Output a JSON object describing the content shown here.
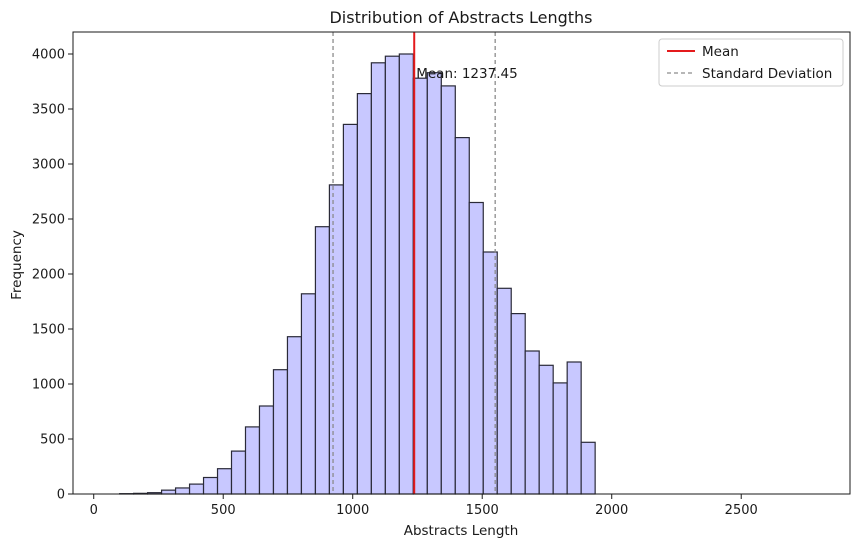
{
  "chart_data": {
    "type": "bar",
    "title": "Distribution of Abstracts Lengths",
    "xlabel": "Abstracts Length",
    "ylabel": "Frequency",
    "xlim": [
      -80,
      2920
    ],
    "ylim": [
      0,
      4200
    ],
    "xticks": [
      0,
      500,
      1000,
      1500,
      2000,
      2500
    ],
    "yticks": [
      0,
      500,
      1000,
      1500,
      2000,
      2500,
      3000,
      3500,
      4000
    ],
    "bin_edges": [
      100,
      154,
      208,
      262,
      316,
      370,
      424,
      478,
      532,
      586,
      640,
      694,
      748,
      802,
      856,
      910,
      964,
      1018,
      1072,
      1126,
      1180,
      1234,
      1288,
      1342,
      1396,
      1450,
      1504,
      1558,
      1612,
      1666,
      1720,
      1774,
      1828,
      1882,
      1936,
      1990,
      2044,
      2098,
      2152,
      2206,
      2260,
      2314,
      2368,
      2422,
      2476,
      2530,
      2584,
      2638,
      2692,
      2746,
      2800
    ],
    "counts": [
      3,
      6,
      12,
      35,
      55,
      90,
      150,
      230,
      390,
      610,
      800,
      1130,
      1430,
      1820,
      2430,
      2810,
      3360,
      3640,
      3920,
      3980,
      4000,
      3780,
      3830,
      3710,
      3240,
      2650,
      2200,
      1870,
      1640,
      1300,
      1170,
      1010,
      1200,
      470,
      0,
      0,
      0,
      0,
      0,
      0,
      0,
      0,
      0,
      0,
      0,
      0,
      0,
      0,
      0,
      0
    ],
    "bar_color": "#c8c8ff",
    "bar_edge_color": "#2a2a38",
    "mean": 1237.45,
    "std_lines": [
      924,
      1550
    ],
    "mean_color": "#e41a1c",
    "std_color": "#8c8c8c",
    "annotation": "Mean: 1237.45",
    "legend": {
      "position": "top-right",
      "entries": [
        {
          "label": "Mean",
          "style": "solid",
          "color": "#e41a1c"
        },
        {
          "label": "Standard Deviation",
          "style": "dashed",
          "color": "#8c8c8c"
        }
      ]
    },
    "grid": false
  }
}
